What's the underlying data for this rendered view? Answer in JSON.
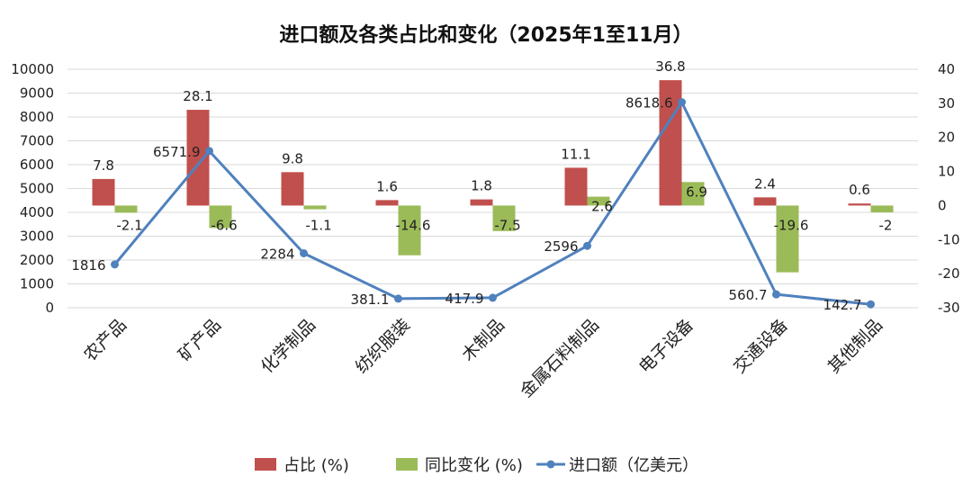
{
  "chart_data": {
    "type": "bar",
    "title": "进口额及各类占比和变化（2025年1至11月）",
    "categories": [
      "农产品",
      "矿产品",
      "化学制品",
      "纺织服装",
      "木制品",
      "金属石料制品",
      "电子设备",
      "交通设备",
      "其他制品"
    ],
    "series": [
      {
        "name": "占比 (%)",
        "type": "bar",
        "axis": "right",
        "color": "#c0504d",
        "values": [
          7.8,
          28.1,
          9.8,
          1.6,
          1.8,
          11.1,
          36.8,
          2.4,
          0.6
        ],
        "labels": [
          "7.8",
          "28.1",
          "9.8",
          "1.6",
          "1.8",
          "11.1",
          "36.8",
          "2.4",
          "0.6"
        ]
      },
      {
        "name": "同比变化 (%)",
        "type": "bar",
        "axis": "right",
        "color": "#9bbb59",
        "values": [
          -2.1,
          -6.6,
          -1.1,
          -14.6,
          -7.5,
          2.6,
          6.9,
          -19.6,
          -2
        ],
        "labels": [
          "-2.1",
          "-6.6",
          "-1.1",
          "-14.6",
          "-7.5",
          "2.6",
          "6.9",
          "-19.6",
          "-2"
        ]
      },
      {
        "name": "进口额（亿美元）",
        "type": "line",
        "axis": "left",
        "color": "#4f81bd",
        "values": [
          1816,
          6571.9,
          2284,
          381.1,
          417.9,
          2596,
          8618.6,
          560.7,
          142.7
        ],
        "labels": [
          "1816",
          "6571.9",
          "2284",
          "381.1",
          "417.9",
          "2596",
          "8618.6",
          "560.7",
          "142.7"
        ]
      }
    ],
    "y_left": {
      "ylim": [
        0,
        10000
      ],
      "ticks": [
        "10000",
        "9000",
        "8000",
        "7000",
        "6000",
        "5000",
        "4000",
        "3000",
        "2000",
        "1000",
        "0"
      ]
    },
    "y_right": {
      "ylim": [
        -30,
        40
      ],
      "ticks": [
        "40",
        "30",
        "20",
        "10",
        "0",
        "-10",
        "-20",
        "-30"
      ]
    },
    "grid": true,
    "legend": "bottom"
  }
}
